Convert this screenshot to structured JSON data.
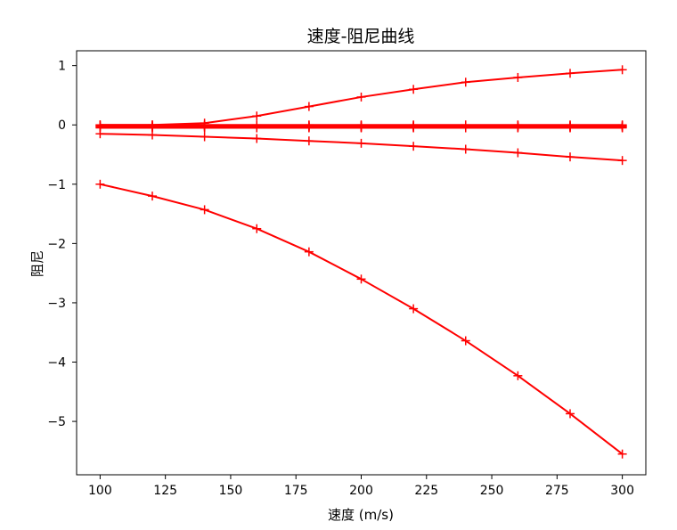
{
  "chart_data": {
    "type": "line",
    "title": "速度-阻尼曲线",
    "xlabel": "速度 (m/s)",
    "ylabel": "阻尼",
    "xlim": [
      91,
      309
    ],
    "ylim": [
      -5.9,
      1.25
    ],
    "x": [
      100,
      120,
      140,
      160,
      180,
      200,
      220,
      240,
      260,
      280,
      300
    ],
    "xticks": [
      100,
      125,
      150,
      175,
      200,
      225,
      250,
      275,
      300
    ],
    "yticks": [
      1,
      0,
      -1,
      -2,
      -3,
      -4,
      -5
    ],
    "ytick_labels": [
      "1",
      "0",
      "−1",
      "−2",
      "−3",
      "−4",
      "−5"
    ],
    "marker": "+",
    "grid": false,
    "color": "#ff0000",
    "series": [
      {
        "values": [
          -1.0,
          -1.2,
          -1.43,
          -1.75,
          -2.14,
          -2.6,
          -3.1,
          -3.64,
          -4.23,
          -4.87,
          -5.55
        ]
      },
      {
        "values": [
          -0.15,
          -0.17,
          -0.2,
          -0.23,
          -0.27,
          -0.31,
          -0.36,
          -0.41,
          -0.47,
          -0.54,
          -0.6
        ]
      },
      {
        "values": [
          0.0,
          0.0,
          0.03,
          0.15,
          0.31,
          0.47,
          0.6,
          0.72,
          0.8,
          0.87,
          0.93
        ]
      },
      {
        "values": [
          0.0,
          0.0,
          0.0,
          0.0,
          0.0,
          0.0,
          0.0,
          0.0,
          0.0,
          0.0,
          0.0
        ]
      },
      {
        "values": [
          -0.01,
          -0.01,
          -0.01,
          -0.01,
          -0.01,
          -0.01,
          -0.01,
          -0.01,
          -0.01,
          -0.01,
          -0.01
        ]
      },
      {
        "values": [
          -0.02,
          -0.02,
          -0.02,
          -0.02,
          -0.02,
          -0.02,
          -0.02,
          -0.02,
          -0.02,
          -0.02,
          -0.02
        ]
      },
      {
        "values": [
          -0.03,
          -0.03,
          -0.03,
          -0.03,
          -0.03,
          -0.03,
          -0.03,
          -0.03,
          -0.03,
          -0.03,
          -0.03
        ]
      },
      {
        "values": [
          -0.04,
          -0.04,
          -0.04,
          -0.04,
          -0.04,
          -0.04,
          -0.04,
          -0.04,
          -0.04,
          -0.04,
          -0.04
        ]
      },
      {
        "values": [
          -0.05,
          -0.05,
          -0.05,
          -0.05,
          -0.05,
          -0.05,
          -0.05,
          -0.05,
          -0.05,
          -0.05,
          -0.05
        ]
      }
    ]
  }
}
